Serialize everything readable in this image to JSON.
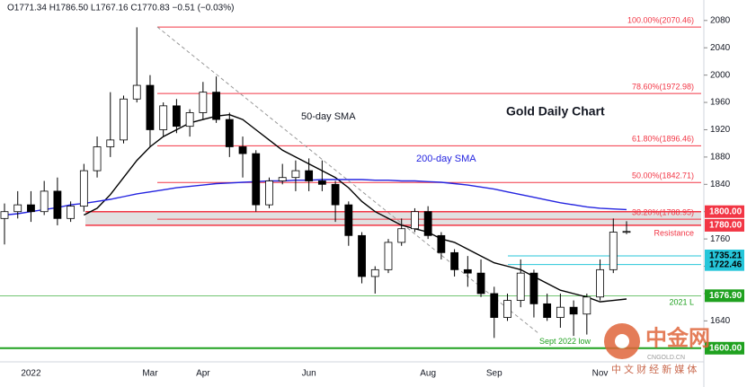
{
  "chart_data": {
    "type": "candlestick",
    "header": "O1771.34 H1786.50 L1767.16 C1770.83 −0.51 (−0.03%)",
    "title": "Gold Daily Chart",
    "categories": [
      null,
      null,
      "2022",
      null,
      null,
      null,
      null,
      null,
      null,
      null,
      null,
      "Mar",
      null,
      null,
      null,
      "Apr",
      null,
      null,
      null,
      null,
      null,
      null,
      null,
      "Jun",
      null,
      null,
      null,
      null,
      null,
      null,
      null,
      null,
      "Aug",
      null,
      null,
      null,
      null,
      "Sep",
      null,
      null,
      null,
      null,
      null,
      null,
      null,
      "Nov",
      null,
      null
    ],
    "ohlc": [
      [
        1790,
        1812,
        1752,
        1800
      ],
      [
        1800,
        1830,
        1790,
        1810
      ],
      [
        1810,
        1830,
        1785,
        1800
      ],
      [
        1800,
        1845,
        1795,
        1830
      ],
      [
        1830,
        1850,
        1780,
        1790
      ],
      [
        1790,
        1815,
        1785,
        1808
      ],
      [
        1808,
        1870,
        1800,
        1860
      ],
      [
        1860,
        1910,
        1850,
        1895
      ],
      [
        1895,
        1975,
        1880,
        1905
      ],
      [
        1905,
        1970,
        1900,
        1965
      ],
      [
        1965,
        2070,
        1960,
        1985
      ],
      [
        1985,
        2000,
        1895,
        1920
      ],
      [
        1920,
        1960,
        1910,
        1955
      ],
      [
        1955,
        1965,
        1915,
        1925
      ],
      [
        1925,
        1950,
        1910,
        1945
      ],
      [
        1945,
        1990,
        1935,
        1975
      ],
      [
        1975,
        1998,
        1930,
        1935
      ],
      [
        1935,
        1945,
        1880,
        1895
      ],
      [
        1895,
        1910,
        1850,
        1885
      ],
      [
        1885,
        1890,
        1800,
        1810
      ],
      [
        1810,
        1850,
        1805,
        1845
      ],
      [
        1845,
        1870,
        1840,
        1850
      ],
      [
        1850,
        1875,
        1830,
        1860
      ],
      [
        1860,
        1878,
        1830,
        1845
      ],
      [
        1845,
        1875,
        1830,
        1840
      ],
      [
        1840,
        1845,
        1785,
        1810
      ],
      [
        1810,
        1815,
        1750,
        1765
      ],
      [
        1765,
        1770,
        1695,
        1705
      ],
      [
        1705,
        1720,
        1680,
        1715
      ],
      [
        1715,
        1760,
        1710,
        1755
      ],
      [
        1755,
        1790,
        1750,
        1775
      ],
      [
        1775,
        1805,
        1770,
        1800
      ],
      [
        1800,
        1808,
        1760,
        1765
      ],
      [
        1765,
        1770,
        1730,
        1740
      ],
      [
        1740,
        1745,
        1705,
        1715
      ],
      [
        1715,
        1735,
        1690,
        1710
      ],
      [
        1710,
        1730,
        1675,
        1680
      ],
      [
        1680,
        1690,
        1615,
        1645
      ],
      [
        1645,
        1680,
        1640,
        1670
      ],
      [
        1670,
        1730,
        1660,
        1710
      ],
      [
        1710,
        1715,
        1645,
        1665
      ],
      [
        1665,
        1680,
        1640,
        1645
      ],
      [
        1645,
        1680,
        1630,
        1660
      ],
      [
        1660,
        1670,
        1618,
        1650
      ],
      [
        1650,
        1680,
        1620,
        1675
      ],
      [
        1675,
        1730,
        1670,
        1715
      ],
      [
        1715,
        1790,
        1710,
        1770
      ],
      [
        1770,
        1786,
        1767,
        1771
      ]
    ],
    "up_color": "#ffffff",
    "down_color": "#000000",
    "series": [
      {
        "name": "50-day SMA",
        "color": "#000000",
        "values": [
          null,
          null,
          null,
          null,
          null,
          null,
          1795,
          1805,
          1825,
          1850,
          1875,
          1895,
          1910,
          1920,
          1930,
          1935,
          1940,
          1942,
          1935,
          1920,
          1905,
          1890,
          1880,
          1870,
          1860,
          1850,
          1835,
          1815,
          1800,
          1790,
          1780,
          1775,
          1770,
          1760,
          1755,
          1745,
          1735,
          1725,
          1720,
          1715,
          1705,
          1695,
          1685,
          1680,
          1675,
          1668,
          1670,
          1672
        ]
      },
      {
        "name": "200-day SMA",
        "color": "#2424e0",
        "values": [
          1795,
          1797,
          1800,
          1803,
          1806,
          1810,
          1812,
          1815,
          1818,
          1822,
          1826,
          1829,
          1832,
          1835,
          1837,
          1839,
          1841,
          1842,
          1843,
          1844,
          1845,
          1845,
          1846,
          1846,
          1847,
          1847,
          1847,
          1847,
          1846,
          1846,
          1845,
          1845,
          1844,
          1843,
          1841,
          1839,
          1836,
          1833,
          1829,
          1825,
          1821,
          1817,
          1813,
          1810,
          1807,
          1805,
          1804,
          1803
        ]
      }
    ],
    "fib_levels": [
      {
        "value": 2070.46,
        "label": "100.00%(2070.46)"
      },
      {
        "value": 1972.98,
        "label": "78.60%(1972.98)"
      },
      {
        "value": 1896.46,
        "label": "61.80%(1896.46)"
      },
      {
        "value": 1842.71,
        "label": "50.00%(1842.71)"
      },
      {
        "value": 1788.95,
        "label": "38.20%(1788.95)"
      }
    ],
    "fib_color": "#f23645",
    "price_tags": [
      {
        "value": 1800,
        "label": "1800.00",
        "color": "#f23645"
      },
      {
        "value": 1780,
        "label": "1780.00",
        "color": "#f23645"
      },
      {
        "value": 1735.21,
        "label": "1735.21",
        "color": "#26c6da"
      },
      {
        "value": 1722.46,
        "label": "1722.46",
        "color": "#26c6da"
      },
      {
        "value": 1676.9,
        "label": "1676.90",
        "color": "#1fa11f"
      },
      {
        "value": 1600,
        "label": "1600.00",
        "color": "#1fa11f"
      }
    ],
    "resistance_zone": [
      1780,
      1800
    ],
    "resistance_label": "Resistance",
    "level_notes": [
      "2021 L",
      "Sept 2022 low"
    ],
    "ylim": [
      1580,
      2110
    ],
    "yticks": [
      1640,
      1680,
      1720,
      1760,
      1800,
      1840,
      1880,
      1920,
      1960,
      2000,
      2040,
      2080
    ],
    "watermark": {
      "logo": "中金网",
      "site": "CNGOLD.CN",
      "tagline": "中 文 财 经 新 媒 体"
    }
  }
}
